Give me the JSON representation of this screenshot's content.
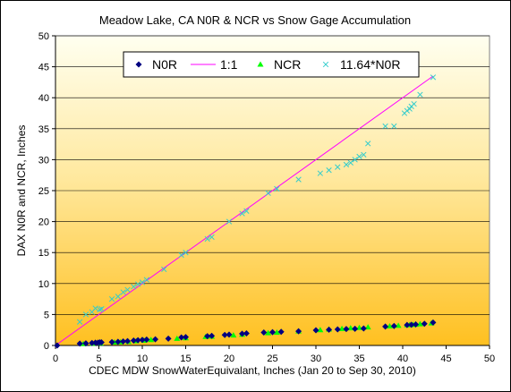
{
  "chart_data": {
    "type": "scatter",
    "title": "Meadow Lake, CA N0R & NCR  vs Snow Gage Accumulation",
    "xlabel": "CDEC MDW SnowWaterEquivalant, Inches (Jan 20 to Sep 30, 2010)",
    "ylabel": "DAX N0R and NCR, Inches",
    "xlim": [
      0,
      50
    ],
    "ylim": [
      0,
      50
    ],
    "xticks": [
      "0",
      "5",
      "10",
      "15",
      "20",
      "25",
      "30",
      "35",
      "40",
      "45",
      "50"
    ],
    "yticks": [
      "0",
      "5",
      "10",
      "15",
      "20",
      "25",
      "30",
      "35",
      "40",
      "45",
      "50"
    ],
    "grid": "horizontal major",
    "legend_position": "top",
    "colors": {
      "N0R": "#000080",
      "1:1": "#ff00ff",
      "NCR": "#00ff00",
      "11.64*N0R": "#33cccc",
      "plot_top": "#fffff0",
      "plot_bottom": "#ffc020"
    },
    "series": [
      {
        "name": "N0R",
        "marker": "diamond",
        "x": [
          0.2,
          2.8,
          3.5,
          4.2,
          4.6,
          4.9,
          5.1,
          5.3,
          6.5,
          7.2,
          7.8,
          8.3,
          9.0,
          9.5,
          10.0,
          10.5,
          11.5,
          13.0,
          14.5,
          15.0,
          17.5,
          18.0,
          19.5,
          20.0,
          21.5,
          22.0,
          24.0,
          25.0,
          26.0,
          28.0,
          30.0,
          31.5,
          32.5,
          33.5,
          34.5,
          35.5,
          38.0,
          39.0,
          40.5,
          41.0,
          41.5,
          42.5,
          43.5
        ],
        "y": [
          0.0,
          0.3,
          0.35,
          0.4,
          0.45,
          0.45,
          0.5,
          0.5,
          0.55,
          0.6,
          0.65,
          0.7,
          0.8,
          0.85,
          0.9,
          0.95,
          1.0,
          1.1,
          1.3,
          1.35,
          1.5,
          1.55,
          1.7,
          1.75,
          1.9,
          1.95,
          2.1,
          2.15,
          2.2,
          2.3,
          2.45,
          2.55,
          2.6,
          2.65,
          2.7,
          2.75,
          3.05,
          3.15,
          3.3,
          3.35,
          3.4,
          3.5,
          3.7
        ]
      },
      {
        "name": "1:1",
        "line": true,
        "x": [
          0,
          43.5
        ],
        "y": [
          0,
          43.5
        ]
      },
      {
        "name": "NCR",
        "marker": "triangle",
        "x": [
          3.2,
          4.3,
          5.2,
          6.8,
          7.5,
          8.4,
          9.3,
          10.2,
          11.0,
          14.0,
          15.0,
          17.3,
          18.0,
          20.5,
          21.5,
          24.5,
          25.5,
          28.0,
          30.5,
          31.5,
          33.0,
          34.0,
          35.0,
          36.0,
          38.5,
          39.5,
          40.5,
          40.8,
          41.2,
          41.5,
          42.0,
          43.3
        ],
        "y": [
          0.25,
          0.3,
          0.35,
          0.5,
          0.55,
          0.6,
          0.7,
          0.8,
          0.9,
          1.1,
          1.2,
          1.4,
          1.45,
          1.65,
          1.75,
          2.0,
          2.1,
          2.3,
          2.5,
          2.6,
          2.7,
          2.8,
          2.85,
          2.95,
          3.1,
          3.2,
          3.3,
          3.3,
          3.35,
          3.4,
          3.45,
          3.6
        ]
      },
      {
        "name": "11.64*N0R",
        "marker": "x",
        "x": [
          2.8,
          3.5,
          4.2,
          4.6,
          5.1,
          5.3,
          6.5,
          7.2,
          7.8,
          8.3,
          9.0,
          9.5,
          10.0,
          10.5,
          12.5,
          14.5,
          15.0,
          17.5,
          18.0,
          20.0,
          21.5,
          22.0,
          24.5,
          25.5,
          28.0,
          30.5,
          31.5,
          32.5,
          33.5,
          34.0,
          34.5,
          35.0,
          35.5,
          36.0,
          38.0,
          39.0,
          40.2,
          40.5,
          40.8,
          41.0,
          41.3,
          42.0,
          43.5
        ],
        "y": [
          3.8,
          5.0,
          5.4,
          6.0,
          5.8,
          5.9,
          7.5,
          7.9,
          8.6,
          9.0,
          9.5,
          9.9,
          10.2,
          10.6,
          12.3,
          14.6,
          15.0,
          17.2,
          17.5,
          20.0,
          21.3,
          21.7,
          24.6,
          25.3,
          26.8,
          27.8,
          28.3,
          28.8,
          29.2,
          29.5,
          30.0,
          30.5,
          30.8,
          32.6,
          35.4,
          35.4,
          37.5,
          37.9,
          38.2,
          38.6,
          39.0,
          40.5,
          43.3
        ]
      }
    ]
  }
}
